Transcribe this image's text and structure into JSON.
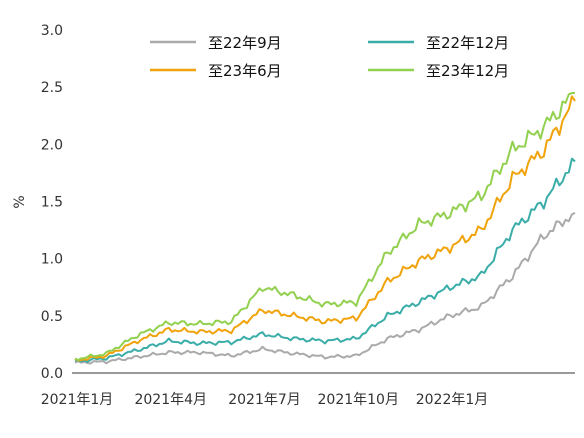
{
  "chart_data": {
    "type": "line",
    "title": "",
    "xlabel": "",
    "ylabel": "%",
    "ylim": [
      0,
      3.0
    ],
    "yticks": [
      "0.0",
      "0.5",
      "1.0",
      "1.5",
      "2.0",
      "2.5",
      "3.0"
    ],
    "xticks": [
      "2021年1月",
      "2021年4月",
      "2021年7月",
      "2021年10月",
      "2022年1月"
    ],
    "x": [
      "2021-01",
      "2021-02",
      "2021-03",
      "2021-04",
      "2021-05",
      "2021-06",
      "2021-07",
      "2021-08",
      "2021-09",
      "2021-10",
      "2021-11",
      "2021-12",
      "2022-01",
      "2022-02",
      "2022-03",
      "2022-04",
      "2022-05"
    ],
    "legend_position": "top",
    "grid": false,
    "series": [
      {
        "name": "至22年9月",
        "color": "#aaaaaa",
        "values": [
          0.09,
          0.1,
          0.14,
          0.18,
          0.18,
          0.15,
          0.21,
          0.17,
          0.14,
          0.15,
          0.3,
          0.38,
          0.5,
          0.58,
          0.85,
          1.2,
          1.4
        ]
      },
      {
        "name": "至22年12月",
        "color": "#3aada8",
        "values": [
          0.1,
          0.13,
          0.2,
          0.28,
          0.26,
          0.27,
          0.34,
          0.3,
          0.28,
          0.3,
          0.5,
          0.62,
          0.75,
          0.85,
          1.25,
          1.5,
          1.85
        ]
      },
      {
        "name": "至23年6月",
        "color": "#f0a30a",
        "values": [
          0.11,
          0.15,
          0.28,
          0.38,
          0.36,
          0.37,
          0.55,
          0.5,
          0.45,
          0.48,
          0.8,
          0.98,
          1.1,
          1.25,
          1.7,
          1.95,
          2.38
        ]
      },
      {
        "name": "至23年12月",
        "color": "#92d050",
        "values": [
          0.12,
          0.17,
          0.33,
          0.44,
          0.43,
          0.45,
          0.75,
          0.68,
          0.6,
          0.62,
          1.05,
          1.3,
          1.4,
          1.55,
          1.95,
          2.15,
          2.45
        ]
      }
    ]
  }
}
